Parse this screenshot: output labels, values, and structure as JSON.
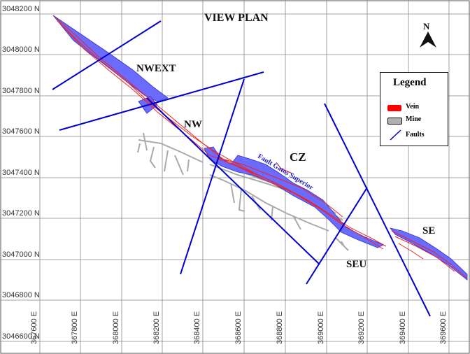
{
  "title": "VIEW PLAN",
  "zones": {
    "nwext": "NWEXT",
    "nw": "NW",
    "cz": "CZ",
    "seu": "SEU",
    "se": "SE"
  },
  "fault_label": "Fault Gatos Superior",
  "north_label": "N",
  "legend": {
    "title": "Legend",
    "items": [
      {
        "label": "Vein",
        "color": "#ff0000"
      },
      {
        "label": "Mine",
        "color": "#b0b0b0"
      },
      {
        "label": "Faults",
        "color": "#0000cc"
      }
    ]
  },
  "northings": [
    "3048200 N",
    "3048000 N",
    "3047800 N",
    "3047600 N",
    "3047400 N",
    "3047200 N",
    "3047000 N",
    "3046800 N",
    "3046600 N"
  ],
  "eastings": [
    "367600 E",
    "367800 E",
    "368000 E",
    "368200 E",
    "368400 E",
    "368600 E",
    "368800 E",
    "369000 E",
    "369200 E",
    "369400 E",
    "369600 E"
  ],
  "colors": {
    "fault": "#0000cc",
    "fault_zone": "#6b6bff",
    "vein": "#ee2222",
    "mine": "#aaaaaa",
    "grid": "#888888"
  }
}
